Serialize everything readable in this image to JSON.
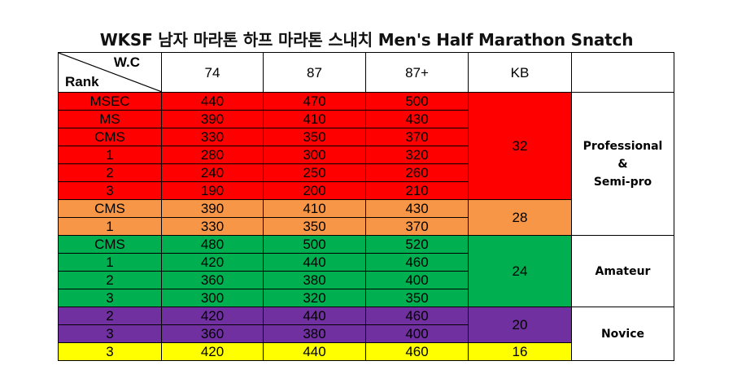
{
  "title": "WKSF 남자 마라톤 하프 마라톤 스내치 Men's Half Marathon Snatch",
  "header": {
    "wc_label": "W.C",
    "rank_label": "Rank",
    "weights": [
      "74",
      "87",
      "87+"
    ],
    "kb_label": "KB"
  },
  "colors": {
    "red": "#ff0000",
    "orange": "#f79646",
    "green": "#00b050",
    "purple": "#7030a0",
    "yellow": "#ffff00"
  },
  "groups": [
    {
      "color": "red",
      "kb": "32",
      "rows": [
        {
          "rank": "MSEC",
          "v74": "440",
          "v87": "470",
          "v87p": "500"
        },
        {
          "rank": "MS",
          "v74": "390",
          "v87": "410",
          "v87p": "430"
        },
        {
          "rank": "CMS",
          "v74": "330",
          "v87": "350",
          "v87p": "370"
        },
        {
          "rank": "1",
          "v74": "280",
          "v87": "300",
          "v87p": "320"
        },
        {
          "rank": "2",
          "v74": "240",
          "v87": "250",
          "v87p": "260"
        },
        {
          "rank": "3",
          "v74": "190",
          "v87": "200",
          "v87p": "210"
        }
      ]
    },
    {
      "color": "orange",
      "kb": "28",
      "rows": [
        {
          "rank": "CMS",
          "v74": "390",
          "v87": "410",
          "v87p": "430"
        },
        {
          "rank": "1",
          "v74": "330",
          "v87": "350",
          "v87p": "370"
        }
      ]
    },
    {
      "color": "green",
      "kb": "24",
      "rows": [
        {
          "rank": "CMS",
          "v74": "480",
          "v87": "500",
          "v87p": "520"
        },
        {
          "rank": "1",
          "v74": "420",
          "v87": "440",
          "v87p": "460"
        },
        {
          "rank": "2",
          "v74": "360",
          "v87": "380",
          "v87p": "400"
        },
        {
          "rank": "3",
          "v74": "300",
          "v87": "320",
          "v87p": "350"
        }
      ]
    },
    {
      "color": "purple",
      "kb": "20",
      "rows": [
        {
          "rank": "2",
          "v74": "420",
          "v87": "440",
          "v87p": "460"
        },
        {
          "rank": "3",
          "v74": "360",
          "v87": "380",
          "v87p": "400"
        }
      ]
    },
    {
      "color": "yellow",
      "kb": "16",
      "rows": [
        {
          "rank": "3",
          "v74": "420",
          "v87": "440",
          "v87p": "460"
        }
      ]
    }
  ],
  "levels": {
    "pro": [
      "Professional",
      "&",
      "Semi-pro"
    ],
    "amateur": "Amateur",
    "novice": "Novice"
  }
}
